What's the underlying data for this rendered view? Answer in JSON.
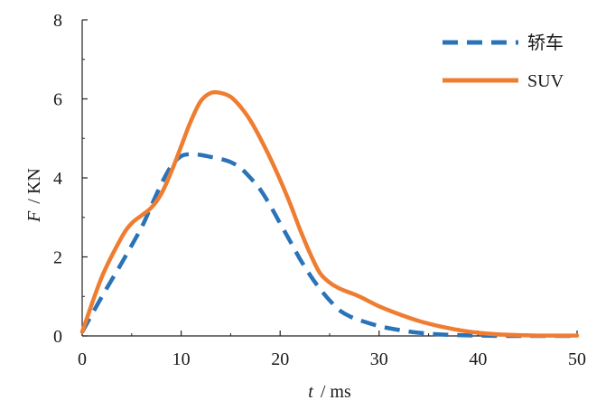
{
  "chart_data": {
    "type": "line",
    "title": "",
    "xlabel_var": "t",
    "xlabel_unit": "/ ms",
    "ylabel_var": "F",
    "ylabel_unit": "/ KN",
    "xlim": [
      0,
      50
    ],
    "ylim": [
      0,
      8
    ],
    "xticks": [
      0,
      10,
      20,
      30,
      40,
      50
    ],
    "yticks": [
      0,
      2,
      4,
      6,
      8
    ],
    "grid": false,
    "legend_position": "top-right",
    "series": [
      {
        "name": "轿车",
        "color": "#2a73b8",
        "style": "dashed",
        "x": [
          0,
          2,
          4,
          6,
          7,
          8,
          9,
          10,
          11,
          12,
          13,
          14,
          15,
          16,
          17,
          18,
          19,
          20,
          21,
          22,
          23,
          24,
          25,
          26,
          27,
          28,
          30,
          32,
          34,
          36,
          38,
          40,
          42,
          44,
          46,
          48,
          50
        ],
        "y": [
          0.1,
          1.0,
          1.85,
          2.75,
          3.3,
          3.85,
          4.3,
          4.55,
          4.6,
          4.58,
          4.53,
          4.48,
          4.4,
          4.25,
          4.0,
          3.7,
          3.3,
          2.85,
          2.4,
          1.95,
          1.55,
          1.2,
          0.9,
          0.65,
          0.5,
          0.4,
          0.25,
          0.15,
          0.08,
          0.04,
          0.02,
          0.01,
          0.0,
          0.0,
          0.0,
          0.0,
          0.0
        ]
      },
      {
        "name": "SUV",
        "color": "#ef7d31",
        "style": "solid",
        "x": [
          0,
          2,
          4,
          5,
          6,
          7,
          8,
          9,
          10,
          11,
          12,
          13,
          14,
          15,
          16,
          17,
          18,
          19,
          20,
          21,
          22,
          23,
          24,
          25,
          26,
          27,
          28,
          30,
          32,
          34,
          36,
          38,
          40,
          42,
          44,
          46,
          48,
          50
        ],
        "y": [
          0.1,
          1.5,
          2.5,
          2.85,
          3.05,
          3.25,
          3.6,
          4.15,
          4.8,
          5.45,
          5.95,
          6.15,
          6.15,
          6.05,
          5.8,
          5.45,
          5.0,
          4.5,
          3.95,
          3.35,
          2.7,
          2.1,
          1.6,
          1.35,
          1.2,
          1.1,
          1.0,
          0.75,
          0.55,
          0.38,
          0.25,
          0.15,
          0.08,
          0.04,
          0.02,
          0.01,
          0.01,
          0.01
        ]
      }
    ]
  }
}
